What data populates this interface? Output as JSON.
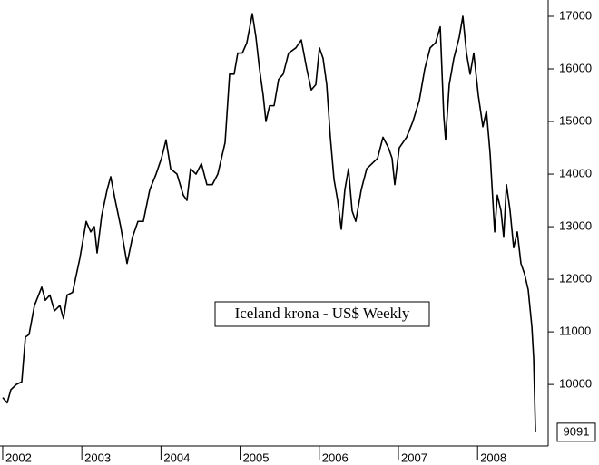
{
  "chart_data": {
    "type": "line",
    "x": [
      2002.0,
      2002.057,
      2002.103,
      2002.172,
      2002.241,
      2002.287,
      2002.333,
      2002.401,
      2002.493,
      2002.539,
      2002.596,
      2002.654,
      2002.722,
      2002.768,
      2002.814,
      2002.883,
      2002.975,
      2003.055,
      2003.112,
      2003.158,
      2003.193,
      2003.25,
      2003.319,
      2003.365,
      2003.422,
      2003.491,
      2003.571,
      2003.64,
      2003.709,
      2003.777,
      2003.858,
      2003.938,
      2004.006,
      2004.064,
      2004.122,
      2004.202,
      2004.282,
      2004.328,
      2004.374,
      2004.443,
      2004.511,
      2004.58,
      2004.649,
      2004.718,
      2004.81,
      2004.867,
      2004.924,
      2004.97,
      2005.028,
      2005.085,
      2005.154,
      2005.2,
      2005.245,
      2005.291,
      2005.326,
      2005.372,
      2005.429,
      2005.486,
      2005.544,
      2005.612,
      2005.704,
      2005.773,
      2005.842,
      2005.899,
      2005.956,
      2006.002,
      2006.048,
      2006.094,
      2006.14,
      2006.186,
      2006.232,
      2006.278,
      2006.323,
      2006.369,
      2006.415,
      2006.461,
      2006.53,
      2006.599,
      2006.667,
      2006.736,
      2006.805,
      2006.874,
      2006.92,
      2006.954,
      2007.011,
      2007.103,
      2007.183,
      2007.264,
      2007.333,
      2007.401,
      2007.47,
      2007.528,
      2007.573,
      2007.596,
      2007.642,
      2007.7,
      2007.768,
      2007.814,
      2007.86,
      2007.906,
      2007.952,
      2008.009,
      2008.067,
      2008.112,
      2008.158,
      2008.193,
      2008.216,
      2008.25,
      2008.296,
      2008.33,
      2008.365,
      2008.411,
      2008.456,
      2008.502,
      2008.548,
      2008.594,
      2008.64,
      2008.686,
      2008.709,
      2008.732
    ],
    "series": [
      {
        "name": "Iceland krona - US$ Weekly",
        "color": "#000000",
        "values": [
          9750,
          9650,
          9900,
          10000,
          10050,
          10900,
          10950,
          11500,
          11850,
          11600,
          11700,
          11400,
          11500,
          11250,
          11700,
          11750,
          12400,
          13100,
          12900,
          13000,
          12500,
          13200,
          13700,
          13950,
          13500,
          13000,
          12300,
          12800,
          13100,
          13100,
          13700,
          14000,
          14300,
          14650,
          14100,
          14000,
          13600,
          13500,
          14100,
          14000,
          14200,
          13800,
          13800,
          14000,
          14600,
          15900,
          15900,
          16300,
          16300,
          16500,
          17050,
          16600,
          16000,
          15500,
          15000,
          15300,
          15300,
          15800,
          15900,
          16300,
          16400,
          16550,
          16000,
          15600,
          15700,
          16400,
          16200,
          15700,
          14700,
          13900,
          13500,
          12950,
          13700,
          14100,
          13300,
          13100,
          13700,
          14100,
          14200,
          14300,
          14700,
          14500,
          14300,
          13800,
          14500,
          14700,
          15000,
          15400,
          16000,
          16400,
          16500,
          16800,
          15100,
          14650,
          15700,
          16200,
          16600,
          17000,
          16300,
          15900,
          16300,
          15500,
          14900,
          15200,
          14400,
          13500,
          12900,
          13600,
          13300,
          12800,
          13800,
          13300,
          12600,
          12900,
          12300,
          12100,
          11800,
          11100,
          10500,
          9091
        ]
      }
    ],
    "xlim": [
      2001.966,
      2008.892
    ],
    "xticks": [
      2002,
      2003,
      2004,
      2005,
      2006,
      2007,
      2008
    ],
    "ylim": [
      8830,
      17310
    ],
    "yticks": [
      10000,
      11000,
      12000,
      13000,
      14000,
      15000,
      16000,
      17000
    ]
  }
}
